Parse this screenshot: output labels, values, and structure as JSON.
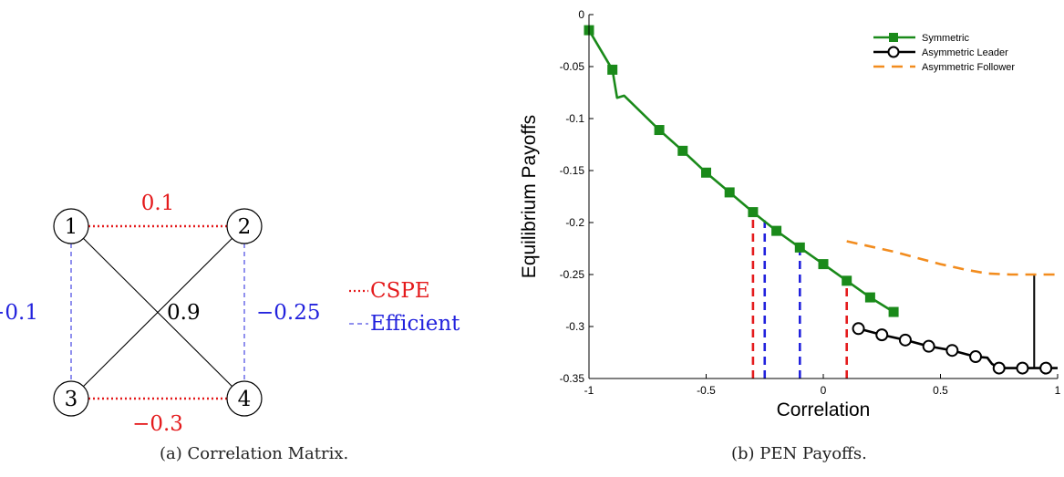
{
  "panel_a": {
    "caption": "(a) Correlation Matrix.",
    "nodes": [
      "1",
      "2",
      "3",
      "4"
    ],
    "edges": [
      {
        "from": "1",
        "to": "2",
        "label": "0.1",
        "style": "cspe"
      },
      {
        "from": "3",
        "to": "4",
        "label": "−0.3",
        "style": "cspe"
      },
      {
        "from": "1",
        "to": "3",
        "label": "−0.1",
        "style": "efficient"
      },
      {
        "from": "2",
        "to": "4",
        "label": "−0.25",
        "style": "efficient"
      },
      {
        "from": "1",
        "to": "4",
        "label": "0.9",
        "style": "solid"
      },
      {
        "from": "2",
        "to": "3",
        "label": "",
        "style": "solid"
      }
    ],
    "legend": [
      {
        "label": "CSPE",
        "color": "#e41a1c"
      },
      {
        "label": "Efficient",
        "color": "#2222dd"
      }
    ]
  },
  "panel_b": {
    "caption": "(b) PEN Payoffs."
  },
  "chart_data": {
    "type": "line",
    "xlabel": "Correlation",
    "ylabel": "Equilibrium Payoffs",
    "xlim": [
      -1,
      1
    ],
    "ylim": [
      -0.35,
      0
    ],
    "xticks": [
      -1,
      -0.5,
      0,
      0.5,
      1
    ],
    "xtick_labels": [
      "-1",
      "-0.5",
      "0",
      "0.5",
      "1"
    ],
    "yticks": [
      0,
      -0.05,
      -0.1,
      -0.15,
      -0.2,
      -0.25,
      -0.3,
      -0.35
    ],
    "ytick_labels": [
      "0",
      "-0.05",
      "-0.1",
      "-0.15",
      "-0.2",
      "-0.25",
      "-0.3",
      "-0.35"
    ],
    "legend_position": "top-right",
    "colors": {
      "symmetric": "#1a8a1a",
      "leader": "#000000",
      "follower": "#f28c1e",
      "cspe": "#e41a1c",
      "efficient": "#2222dd"
    },
    "series": [
      {
        "name": "Symmetric",
        "x": [
          -1,
          -0.9,
          -0.88,
          -0.85,
          -0.7,
          -0.6,
          -0.5,
          -0.4,
          -0.3,
          -0.2,
          -0.1,
          0,
          0.1,
          0.2,
          0.3
        ],
        "y": [
          -0.015,
          -0.053,
          -0.08,
          -0.078,
          -0.111,
          -0.131,
          -0.152,
          -0.171,
          -0.19,
          -0.208,
          -0.224,
          -0.24,
          -0.256,
          -0.272,
          -0.286
        ],
        "markers": [
          0,
          1,
          4,
          5,
          6,
          7,
          8,
          9,
          10,
          11,
          12,
          13,
          14
        ]
      },
      {
        "name": "Asymmetric Leader",
        "x": [
          0.15,
          0.25,
          0.35,
          0.45,
          0.55,
          0.65,
          0.7,
          0.72,
          0.75,
          0.85,
          0.95,
          1.0
        ],
        "y": [
          -0.302,
          -0.308,
          -0.313,
          -0.319,
          -0.323,
          -0.329,
          -0.33,
          -0.336,
          -0.34,
          -0.34,
          -0.34,
          -0.34
        ],
        "markers": [
          0,
          1,
          2,
          3,
          4,
          5,
          8,
          9,
          10
        ]
      },
      {
        "name": "Asymmetric Follower",
        "x": [
          0.1,
          0.2,
          0.3,
          0.4,
          0.5,
          0.6,
          0.7,
          0.8,
          0.9,
          1.0
        ],
        "y": [
          -0.218,
          -0.223,
          -0.228,
          -0.234,
          -0.24,
          -0.245,
          -0.249,
          -0.25,
          -0.25,
          -0.25
        ]
      }
    ],
    "vlines": [
      {
        "x": -0.3,
        "y": -0.19,
        "style": "cspe"
      },
      {
        "x": 0.1,
        "y": -0.256,
        "style": "cspe"
      },
      {
        "x": -0.25,
        "y": -0.198,
        "style": "efficient"
      },
      {
        "x": -0.1,
        "y": -0.224,
        "style": "efficient"
      },
      {
        "x": 0.9,
        "y": -0.25,
        "y0": -0.34,
        "style": "solid"
      }
    ]
  }
}
